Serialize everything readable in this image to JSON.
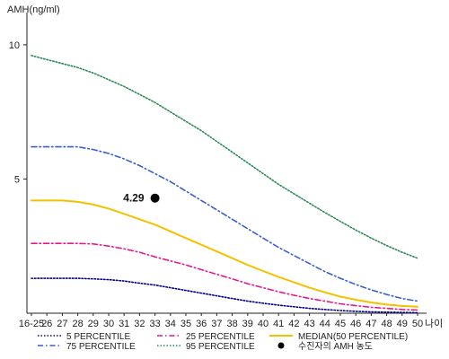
{
  "chart_data": {
    "type": "line",
    "title": "",
    "ylabel": "AMH(ng/ml)",
    "xlabel": "나이",
    "ylim": [
      0,
      11
    ],
    "yticks": [
      5,
      10
    ],
    "categories": [
      "16-25",
      "26",
      "27",
      "28",
      "29",
      "30",
      "31",
      "32",
      "33",
      "34",
      "35",
      "36",
      "37",
      "38",
      "39",
      "40",
      "41",
      "42",
      "43",
      "44",
      "45",
      "46",
      "47",
      "48",
      "49",
      "50"
    ],
    "series": [
      {
        "name": "5 PERCENTILE",
        "color": "#00008b",
        "dash": "dotted",
        "values": [
          1.3,
          1.3,
          1.3,
          1.3,
          1.28,
          1.25,
          1.2,
          1.12,
          1.05,
          0.95,
          0.85,
          0.75,
          0.65,
          0.55,
          0.45,
          0.37,
          0.3,
          0.24,
          0.18,
          0.14,
          0.1,
          0.07,
          0.05,
          0.04,
          0.03,
          0.02
        ]
      },
      {
        "name": "25 PERCENTILE",
        "color": "#e6198c",
        "dash": "dashdot",
        "values": [
          2.6,
          2.6,
          2.6,
          2.6,
          2.58,
          2.5,
          2.4,
          2.27,
          2.1,
          1.95,
          1.8,
          1.62,
          1.45,
          1.28,
          1.1,
          0.95,
          0.8,
          0.67,
          0.55,
          0.45,
          0.35,
          0.28,
          0.22,
          0.18,
          0.14,
          0.12
        ]
      },
      {
        "name": "MEDIAN(50 PERCENTILE)",
        "color": "#f2c200",
        "dash": "solid",
        "values": [
          4.2,
          4.2,
          4.2,
          4.15,
          4.05,
          3.9,
          3.7,
          3.5,
          3.3,
          3.05,
          2.8,
          2.55,
          2.3,
          2.05,
          1.8,
          1.57,
          1.35,
          1.15,
          0.95,
          0.78,
          0.62,
          0.5,
          0.4,
          0.32,
          0.27,
          0.24
        ]
      },
      {
        "name": "75 PERCENTILE",
        "color": "#3a5fcd",
        "dash": "dashdot",
        "values": [
          6.2,
          6.2,
          6.2,
          6.2,
          6.1,
          5.95,
          5.75,
          5.5,
          5.2,
          4.9,
          4.55,
          4.2,
          3.85,
          3.5,
          3.15,
          2.8,
          2.45,
          2.15,
          1.85,
          1.55,
          1.3,
          1.07,
          0.87,
          0.7,
          0.55,
          0.45
        ]
      },
      {
        "name": "95 PERCENTILE",
        "color": "#2e8b57",
        "dash": "dotted",
        "values": [
          9.6,
          9.45,
          9.3,
          9.15,
          8.95,
          8.7,
          8.45,
          8.15,
          7.85,
          7.5,
          7.15,
          6.8,
          6.4,
          6.0,
          5.6,
          5.2,
          4.8,
          4.45,
          4.1,
          3.75,
          3.42,
          3.1,
          2.8,
          2.52,
          2.27,
          2.05
        ]
      }
    ],
    "annotation": {
      "label": "수진자의 AMH 농도",
      "x": "33",
      "y": 4.29,
      "value_label": "4.29"
    },
    "legend": {
      "position": "bottom"
    }
  }
}
